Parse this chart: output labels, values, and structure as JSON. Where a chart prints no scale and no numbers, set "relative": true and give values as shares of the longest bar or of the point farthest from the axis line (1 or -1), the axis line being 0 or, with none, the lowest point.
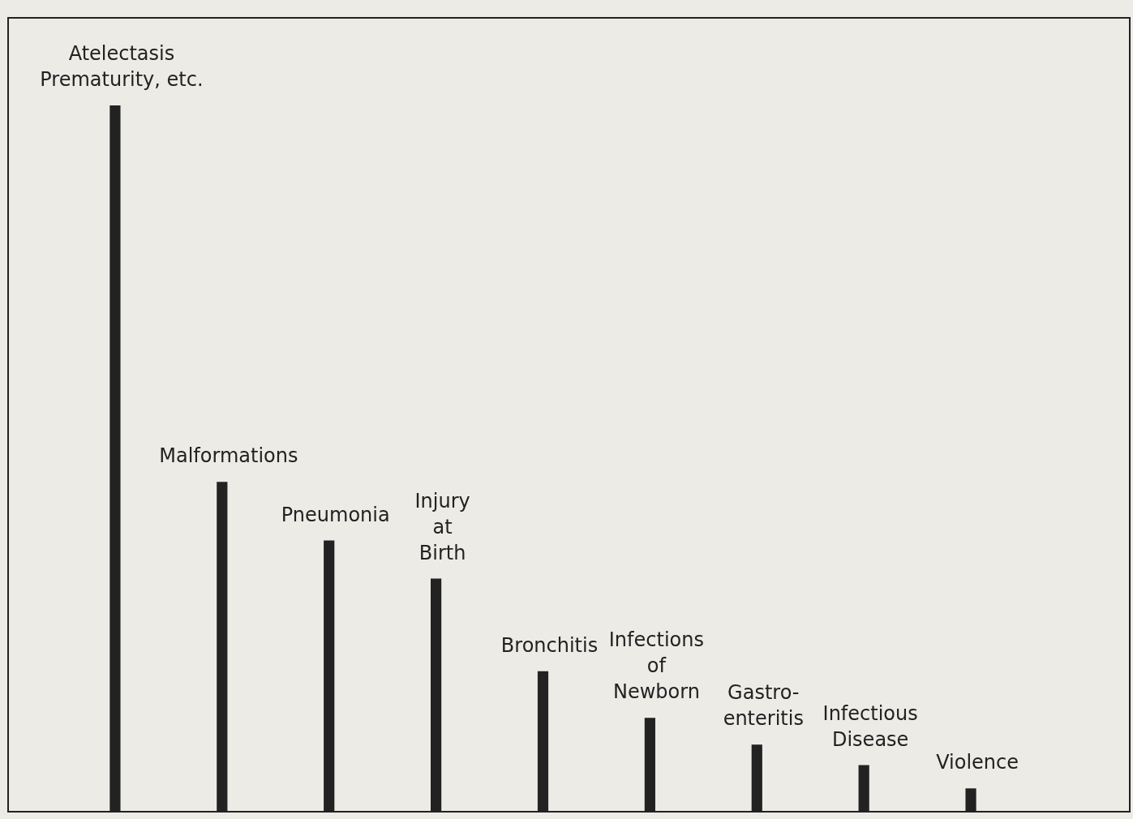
{
  "chart_data": {
    "type": "bar",
    "relative": true,
    "categories": [
      "Atelectasis\nPrematurity, etc.",
      "Malformations",
      "Pneumonia",
      "Injury\nat\nBirth",
      "Bronchitis",
      "Infections\nof\nNewborn",
      "Gastro-\nenteritis",
      "Infectious\nDisease",
      "Violence"
    ],
    "values": [
      1,
      0.467,
      0.384,
      0.33,
      0.199,
      0.133,
      0.095,
      0.066,
      0.033
    ],
    "color": "#222222"
  }
}
